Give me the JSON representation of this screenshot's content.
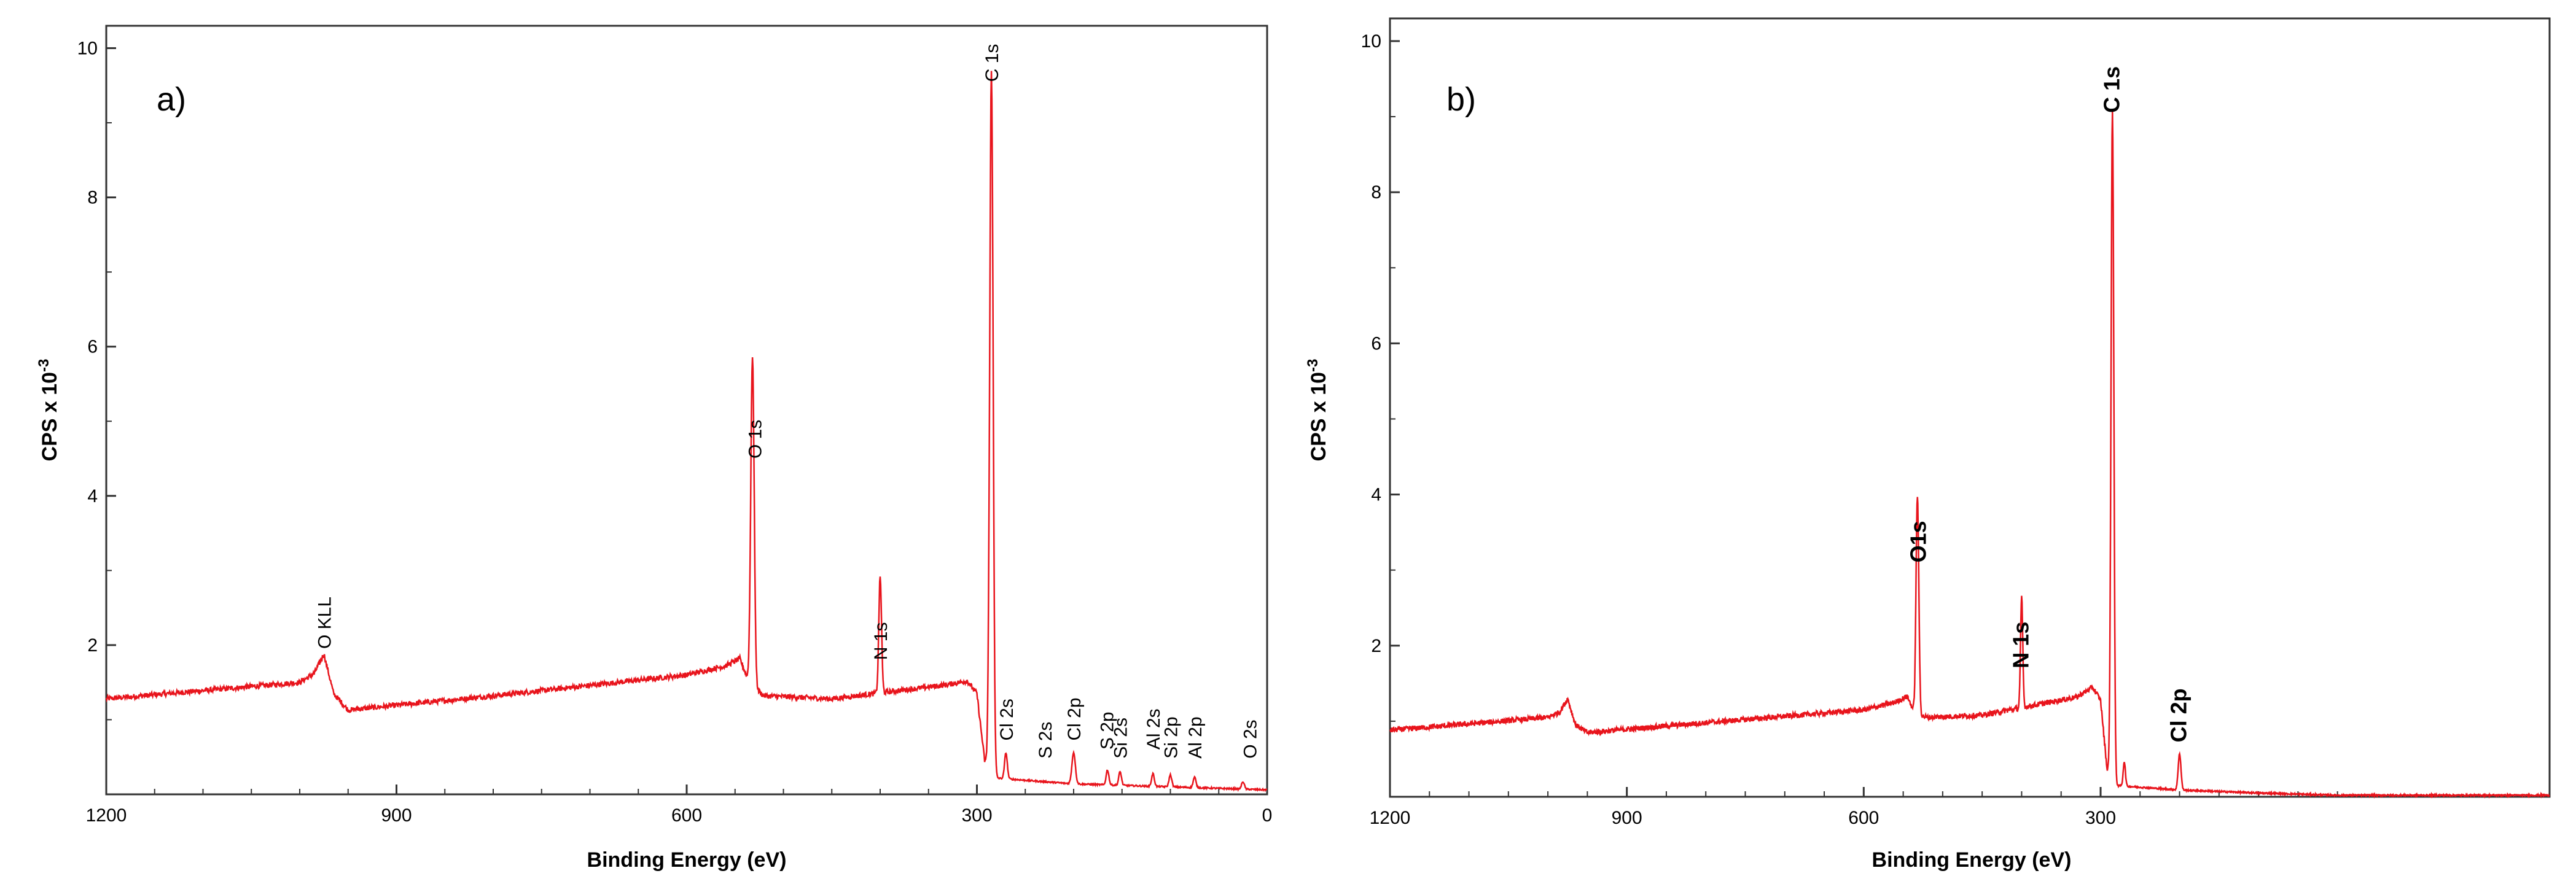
{
  "chart_data": [
    {
      "type": "line",
      "panel_label": "a)",
      "xlabel": "Binding Energy (eV)",
      "ylabel_main": "CPS x 10",
      "ylabel_exp": "-3",
      "xlim": [
        1200,
        0
      ],
      "ylim": [
        0,
        10.3
      ],
      "x_ticks": [
        1200,
        900,
        600,
        300,
        0
      ],
      "y_ticks": [
        2,
        4,
        6,
        8,
        10
      ],
      "grid": false,
      "line_color": "#e8141c",
      "series": [
        {
          "baseline": [
            [
              1200,
              1.28
            ],
            [
              1000,
              1.5
            ],
            [
              985,
              1.62
            ],
            [
              975,
              1.88
            ],
            [
              965,
              1.35
            ],
            [
              950,
              1.13
            ],
            [
              800,
              1.32
            ],
            [
              600,
              1.6
            ],
            [
              560,
              1.72
            ],
            [
              545,
              1.82
            ],
            [
              535,
              1.48
            ],
            [
              520,
              1.32
            ],
            [
              450,
              1.28
            ],
            [
              330,
              1.47
            ],
            [
              310,
              1.52
            ],
            [
              300,
              1.35
            ],
            [
              292,
              0.45
            ],
            [
              282,
              0.22
            ],
            [
              200,
              0.14
            ],
            [
              100,
              0.1
            ],
            [
              0,
              0.06
            ]
          ],
          "peaks": [
            {
              "x": 285,
              "y": 9.4,
              "w": 2.5
            },
            {
              "x": 532,
              "y": 4.4,
              "w": 2.5
            },
            {
              "x": 400,
              "y": 1.55,
              "w": 2
            },
            {
              "x": 270,
              "y": 0.35,
              "w": 2
            },
            {
              "x": 200,
              "y": 0.42,
              "w": 2.5
            },
            {
              "x": 165,
              "y": 0.2,
              "w": 2
            },
            {
              "x": 152,
              "y": 0.18,
              "w": 2
            },
            {
              "x": 118,
              "y": 0.17,
              "w": 2
            },
            {
              "x": 100,
              "y": 0.16,
              "w": 2
            },
            {
              "x": 75,
              "y": 0.14,
              "w": 2
            },
            {
              "x": 25,
              "y": 0.1,
              "w": 2
            }
          ]
        }
      ],
      "annotations": [
        {
          "text": "O KLL",
          "x": 975,
          "y": 1.95
        },
        {
          "text": "O 1s",
          "x": 530,
          "y": 4.5
        },
        {
          "text": "N 1s",
          "x": 400,
          "y": 1.8
        },
        {
          "text": "C 1s",
          "x": 285,
          "y": 9.55
        },
        {
          "text": "Cl 2s",
          "x": 270,
          "y": 0.72
        },
        {
          "text": "S 2s",
          "x": 230,
          "y": 0.48
        },
        {
          "text": "Cl 2p",
          "x": 200,
          "y": 0.72
        },
        {
          "text": "S 2p",
          "x": 166,
          "y": 0.6
        },
        {
          "text": "Si 2s",
          "x": 152,
          "y": 0.48
        },
        {
          "text": "Al 2s",
          "x": 118,
          "y": 0.6
        },
        {
          "text": "Si 2p",
          "x": 100,
          "y": 0.48
        },
        {
          "text": "Al 2p",
          "x": 75,
          "y": 0.48
        },
        {
          "text": "O 2s",
          "x": 18,
          "y": 0.48
        }
      ]
    },
    {
      "type": "line",
      "panel_label": "b)",
      "xlabel": "Binding Energy (eV)",
      "ylabel_main": "CPS x 10",
      "ylabel_exp": "-3",
      "xlim": [
        1200,
        0
      ],
      "ylim": [
        0,
        10.3
      ],
      "x_ticks": [
        1200,
        900,
        600,
        300
      ],
      "y_ticks": [
        2,
        4,
        6,
        8,
        10
      ],
      "grid": false,
      "line_color": "#e8141c",
      "series": [
        {
          "baseline": [
            [
              1200,
              0.88
            ],
            [
              1000,
              1.05
            ],
            [
              985,
              1.12
            ],
            [
              975,
              1.3
            ],
            [
              965,
              0.95
            ],
            [
              950,
              0.85
            ],
            [
              800,
              0.98
            ],
            [
              600,
              1.15
            ],
            [
              560,
              1.25
            ],
            [
              545,
              1.33
            ],
            [
              535,
              1.1
            ],
            [
              520,
              1.05
            ],
            [
              450,
              1.08
            ],
            [
              330,
              1.32
            ],
            [
              310,
              1.45
            ],
            [
              300,
              1.28
            ],
            [
              292,
              0.38
            ],
            [
              282,
              0.15
            ],
            [
              200,
              0.09
            ],
            [
              100,
              0.05
            ],
            [
              0,
              0.02
            ]
          ],
          "peaks": [
            {
              "x": 285,
              "y": 8.85,
              "w": 2.5
            },
            {
              "x": 532,
              "y": 2.9,
              "w": 2.5
            },
            {
              "x": 400,
              "y": 1.45,
              "w": 2
            },
            {
              "x": 270,
              "y": 0.32,
              "w": 2
            },
            {
              "x": 200,
              "y": 0.48,
              "w": 2.5
            }
          ]
        }
      ],
      "annotations": [
        {
          "text": "O1s",
          "x": 530,
          "y": 3.1
        },
        {
          "text": "N 1s",
          "x": 400,
          "y": 1.7
        },
        {
          "text": "C 1s",
          "x": 285,
          "y": 9.05
        },
        {
          "text": "Cl 2p",
          "x": 200,
          "y": 0.72
        }
      ]
    }
  ]
}
